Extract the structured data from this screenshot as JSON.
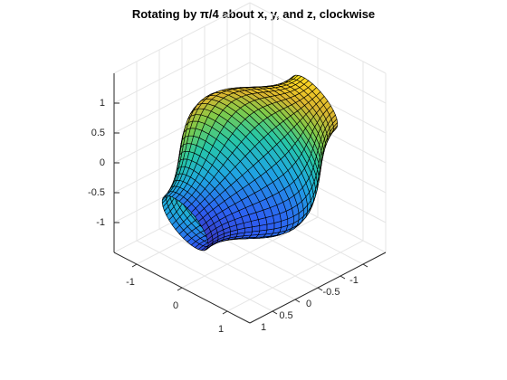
{
  "chart_data": {
    "type": "surface3d",
    "title": "Rotating by π/4 about x, y, and z, clockwise",
    "xlabel": "",
    "ylabel": "",
    "zlabel": "",
    "xlim": [
      -1.5,
      1.5
    ],
    "ylim": [
      -1.5,
      1.5
    ],
    "zlim": [
      -1.5,
      1.5
    ],
    "xticks": [
      -1,
      0,
      1
    ],
    "xtick_labels": [
      "-1",
      "0",
      "1"
    ],
    "yticks": [
      -1,
      -0.5,
      0,
      0.5,
      1
    ],
    "ytick_labels": [
      "-1",
      "-0.5",
      "0",
      "0.5",
      "1"
    ],
    "zticks": [
      -1,
      -0.5,
      0,
      0.5,
      1
    ],
    "ztick_labels": [
      "-1",
      "-0.5",
      "0",
      "0.5",
      "1"
    ],
    "grid": true,
    "colormap": [
      "#3e26a8",
      "#2d5ff2",
      "#1fa8e0",
      "#27c7a6",
      "#7fcb49",
      "#d9b530",
      "#fbd324",
      "#f9fb0e"
    ],
    "edge_color": "#000000",
    "surface": {
      "shape": "barrel",
      "radius_profile": "1 + 0.4*cos(t)",
      "t_range": [
        -3.1416,
        3.1416
      ],
      "rotation_deg": {
        "x": -45,
        "y": -45,
        "z": -45
      },
      "color_by": "z"
    }
  }
}
